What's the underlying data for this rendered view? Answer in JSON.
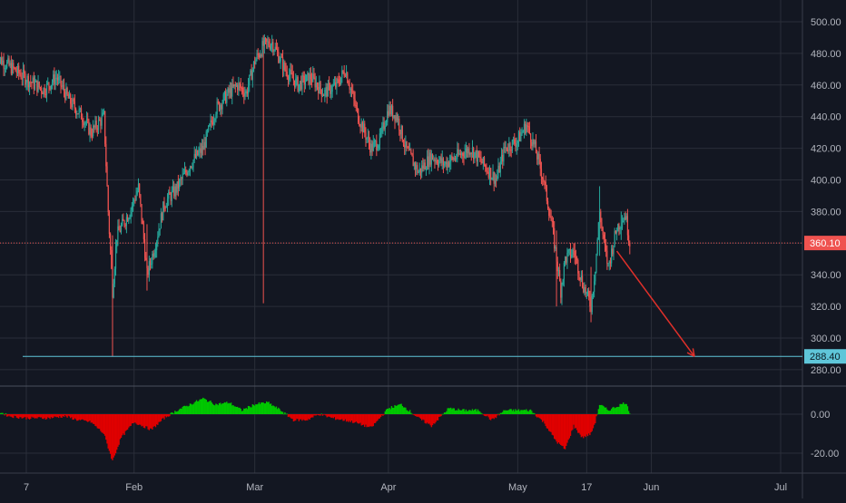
{
  "chart_data": [
    {
      "type": "candlestick",
      "title": "",
      "xlabel": "",
      "ylabel": "",
      "x_tick_labels": [
        "7",
        "Feb",
        "Mar",
        "Apr",
        "May",
        "17",
        "Jun",
        "Jul"
      ],
      "y_tick_labels": [
        "280.00",
        "300.00",
        "320.00",
        "340.00",
        "360.00",
        "380.00",
        "400.00",
        "420.00",
        "440.00",
        "460.00",
        "480.00",
        "500.00"
      ],
      "ylim": [
        272,
        505
      ],
      "grid": true,
      "colors": {
        "up": "#26a69a",
        "down": "#ef5350",
        "background": "#131722",
        "grid": "#2a2e39",
        "text": "#b2b5be"
      },
      "last_price": {
        "label": "360.10",
        "value": 360.1,
        "color": "#ef5350"
      },
      "support_line": {
        "label": "288.40",
        "value": 288.4,
        "color": "#5fc6d9"
      },
      "projection_arrow": {
        "color": "#e0302a",
        "from": {
          "date": "2021-05-24",
          "value": 355
        },
        "to": {
          "date": "2021-06-11",
          "value": 288.4
        }
      },
      "series": [
        {
          "kind": "close_path",
          "points": [
            [
              "2020-12-31",
              478
            ],
            [
              "2021-01-04",
              470
            ],
            [
              "2021-01-08",
              462
            ],
            [
              "2021-01-11",
              457
            ],
            [
              "2021-01-14",
              465
            ],
            [
              "2021-01-17",
              450
            ],
            [
              "2021-01-20",
              440
            ],
            [
              "2021-01-22",
              430
            ],
            [
              "2021-01-25",
              440
            ],
            [
              "2021-01-26",
              380
            ],
            [
              "2021-01-27",
              330
            ],
            [
              "2021-01-28",
              365
            ],
            [
              "2021-01-31",
              380
            ],
            [
              "2021-02-02",
              395
            ],
            [
              "2021-02-03",
              370
            ],
            [
              "2021-02-04",
              340
            ],
            [
              "2021-02-06",
              360
            ],
            [
              "2021-02-08",
              385
            ],
            [
              "2021-02-11",
              395
            ],
            [
              "2021-02-14",
              410
            ],
            [
              "2021-02-17",
              420
            ],
            [
              "2021-02-20",
              445
            ],
            [
              "2021-02-23",
              455
            ],
            [
              "2021-02-25",
              460
            ],
            [
              "2021-02-27",
              455
            ],
            [
              "2021-03-01",
              475
            ],
            [
              "2021-03-03",
              485
            ],
            [
              "2021-03-05",
              487
            ],
            [
              "2021-03-08",
              470
            ],
            [
              "2021-03-11",
              460
            ],
            [
              "2021-03-14",
              465
            ],
            [
              "2021-03-17",
              455
            ],
            [
              "2021-03-20",
              460
            ],
            [
              "2021-03-22",
              470
            ],
            [
              "2021-03-25",
              440
            ],
            [
              "2021-03-28",
              420
            ],
            [
              "2021-03-30",
              425
            ],
            [
              "2021-04-01",
              445
            ],
            [
              "2021-04-03",
              440
            ],
            [
              "2021-04-05",
              420
            ],
            [
              "2021-04-08",
              405
            ],
            [
              "2021-04-11",
              415
            ],
            [
              "2021-04-14",
              410
            ],
            [
              "2021-04-17",
              415
            ],
            [
              "2021-04-20",
              420
            ],
            [
              "2021-04-23",
              410
            ],
            [
              "2021-04-26",
              400
            ],
            [
              "2021-04-28",
              420
            ],
            [
              "2021-05-01",
              425
            ],
            [
              "2021-05-03",
              435
            ],
            [
              "2021-05-05",
              420
            ],
            [
              "2021-05-07",
              400
            ],
            [
              "2021-05-09",
              370
            ],
            [
              "2021-05-11",
              330
            ],
            [
              "2021-05-12",
              350
            ],
            [
              "2021-05-14",
              355
            ],
            [
              "2021-05-16",
              335
            ],
            [
              "2021-05-18",
              320
            ],
            [
              "2021-05-19",
              345
            ],
            [
              "2021-05-20",
              380
            ],
            [
              "2021-05-21",
              360
            ],
            [
              "2021-05-22",
              345
            ],
            [
              "2021-05-24",
              370
            ],
            [
              "2021-05-26",
              378
            ],
            [
              "2021-05-27",
              360
            ]
          ]
        },
        {
          "kind": "wick_extremes",
          "points": [
            [
              "2021-01-27",
              288.4,
              365
            ],
            [
              "2021-02-04",
              330,
              372
            ],
            [
              "2021-03-03",
              322,
              490
            ],
            [
              "2021-05-10",
              320,
              368
            ],
            [
              "2021-05-18",
              310,
              345
            ],
            [
              "2021-05-20",
              352,
              396
            ],
            [
              "2021-05-25",
              362,
              380
            ]
          ]
        }
      ]
    },
    {
      "type": "bar",
      "title": "",
      "xlabel": "",
      "ylabel": "",
      "y_tick_labels": [
        "0.00",
        "-20.00"
      ],
      "ylim": [
        -25,
        12
      ],
      "colors": {
        "positive": "#00c800",
        "negative": "#e00000"
      },
      "series": [
        {
          "kind": "oscillator",
          "points": [
            [
              "2020-12-31",
              2
            ],
            [
              "2021-01-03",
              -1
            ],
            [
              "2021-01-07",
              -2
            ],
            [
              "2021-01-12",
              -2
            ],
            [
              "2021-01-16",
              -1
            ],
            [
              "2021-01-19",
              -3
            ],
            [
              "2021-01-22",
              -4
            ],
            [
              "2021-01-25",
              -10
            ],
            [
              "2021-01-27",
              -24
            ],
            [
              "2021-01-29",
              -12
            ],
            [
              "2021-02-01",
              -4
            ],
            [
              "2021-02-05",
              -8
            ],
            [
              "2021-02-08",
              -2
            ],
            [
              "2021-02-11",
              2
            ],
            [
              "2021-02-14",
              5
            ],
            [
              "2021-02-17",
              8
            ],
            [
              "2021-02-20",
              5
            ],
            [
              "2021-02-23",
              6
            ],
            [
              "2021-02-26",
              2
            ],
            [
              "2021-03-01",
              5
            ],
            [
              "2021-03-04",
              6
            ],
            [
              "2021-03-07",
              2
            ],
            [
              "2021-03-10",
              -3
            ],
            [
              "2021-03-13",
              -3
            ],
            [
              "2021-03-16",
              0
            ],
            [
              "2021-03-19",
              -2
            ],
            [
              "2021-03-24",
              -4
            ],
            [
              "2021-03-28",
              -7
            ],
            [
              "2021-04-01",
              3
            ],
            [
              "2021-04-04",
              5
            ],
            [
              "2021-04-08",
              -2
            ],
            [
              "2021-04-11",
              -6
            ],
            [
              "2021-04-15",
              3
            ],
            [
              "2021-04-18",
              2
            ],
            [
              "2021-04-22",
              2
            ],
            [
              "2021-04-25",
              -3
            ],
            [
              "2021-04-28",
              2
            ],
            [
              "2021-05-01",
              2
            ],
            [
              "2021-05-04",
              2
            ],
            [
              "2021-05-07",
              -4
            ],
            [
              "2021-05-10",
              -14
            ],
            [
              "2021-05-12",
              -18
            ],
            [
              "2021-05-14",
              -6
            ],
            [
              "2021-05-16",
              -12
            ],
            [
              "2021-05-18",
              -10
            ],
            [
              "2021-05-19",
              -4
            ],
            [
              "2021-05-20",
              5
            ],
            [
              "2021-05-22",
              2
            ],
            [
              "2021-05-24",
              4
            ],
            [
              "2021-05-26",
              6
            ],
            [
              "2021-05-27",
              1
            ]
          ]
        }
      ]
    }
  ]
}
